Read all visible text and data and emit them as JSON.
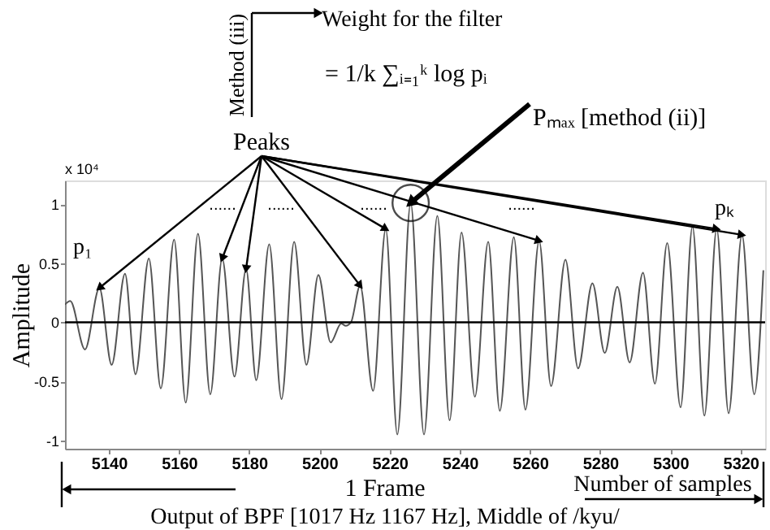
{
  "chart_data": {
    "type": "line",
    "ylabel": "Amplitude",
    "x": [
      5127.5,
      5129.0,
      5133.2,
      5137.3,
      5140.8,
      5144.6,
      5147.6,
      5151.4,
      5154.8,
      5158.6,
      5161.9,
      5165.4,
      5168.9,
      5172.3,
      5175.8,
      5179.1,
      5182.0,
      5185.7,
      5189.2,
      5192.8,
      5196.3,
      5199.7,
      5203.2,
      5206.2,
      5207.5,
      5209.0,
      5211.6,
      5215.3,
      5218.9,
      5222.2,
      5226.0,
      5229.8,
      5233.6,
      5237.1,
      5240.5,
      5244.3,
      5248.1,
      5251.4,
      5255.4,
      5258.7,
      5262.6,
      5266.0,
      5270.1,
      5273.7,
      5277.8,
      5281.3,
      5284.9,
      5288.4,
      5292.2,
      5295.6,
      5299.1,
      5302.9,
      5306.3,
      5309.7,
      5313.2,
      5316.6,
      5320.4,
      5323.9,
      5326.5
    ],
    "series": [
      {
        "color": "#555555",
        "values": [
          0.15,
          0.18,
          -0.23,
          0.29,
          -0.36,
          0.41,
          -0.44,
          0.54,
          -0.56,
          0.7,
          -0.68,
          0.75,
          -0.61,
          0.54,
          -0.46,
          0.45,
          -0.49,
          0.66,
          -0.65,
          0.68,
          -0.36,
          0.4,
          -0.17,
          -0.01,
          -0.03,
          0.0,
          0.31,
          -0.58,
          0.79,
          -0.95,
          1.01,
          -0.95,
          0.9,
          -0.83,
          0.76,
          -0.63,
          0.68,
          -0.75,
          0.72,
          -0.74,
          0.69,
          -0.54,
          0.53,
          -0.39,
          0.33,
          -0.26,
          0.3,
          -0.34,
          0.42,
          -0.52,
          0.67,
          -0.72,
          0.81,
          -0.79,
          0.79,
          -0.77,
          0.74,
          -0.61,
          0.44
        ]
      }
    ],
    "xlim": [
      5127.5,
      5327
    ],
    "ylim": [
      -1.07,
      1.2
    ],
    "xticks": [
      5140,
      5160,
      5180,
      5200,
      5220,
      5240,
      5260,
      5280,
      5300,
      5320
    ],
    "yticks": [
      -1,
      -0.5,
      0,
      0.5,
      1
    ],
    "ref_lines": [
      {
        "axis": "y",
        "value": 0,
        "color": "#000000"
      }
    ],
    "annotations": [
      "x 10⁴",
      "Method (iii)",
      "Weight for the filter",
      "= 1/k ∑ᵢ₌₁ᵏ log pᵢ",
      {
        "text": "Peaks",
        "x": 5137.3,
        "y": 0.29
      },
      {
        "text": "Pₘₐₓ [method (ii)]",
        "x": 5226.0,
        "y": 1.01
      },
      "p₁",
      "pₖ",
      "......",
      "......",
      "......",
      "......",
      "1 Frame",
      "Number of samples",
      "Output of BPF [1017 Hz 1167 Hz], Middle of /kyu/"
    ]
  }
}
